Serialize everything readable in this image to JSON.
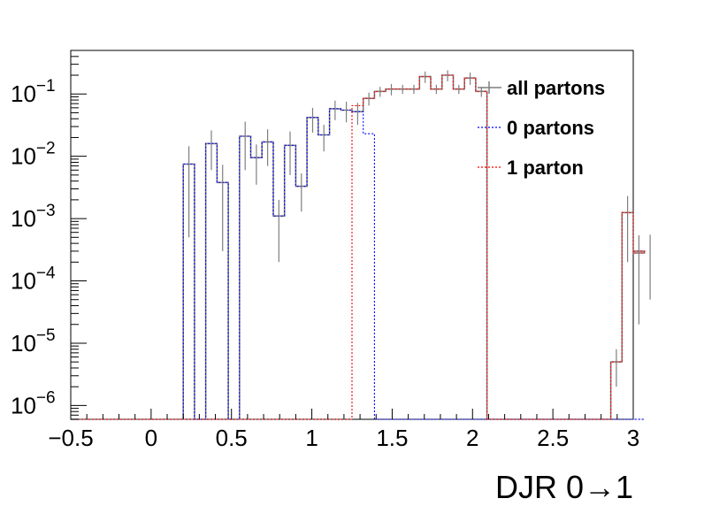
{
  "chart_data": {
    "type": "line",
    "style": "step-histogram",
    "xlabel": "DJR 0→1",
    "ylabel": "",
    "title": "",
    "xlim": [
      -0.5,
      3.0
    ],
    "ylim": [
      6e-07,
      0.5
    ],
    "yscale": "log",
    "grid": false,
    "legend_position": "top-right",
    "x_ticks": [
      "−0.5",
      "0",
      "0.5",
      "1",
      "1.5",
      "2",
      "2.5",
      "3"
    ],
    "x_tick_values": [
      -0.5,
      0,
      0.5,
      1,
      1.5,
      2,
      2.5,
      3
    ],
    "y_ticks": [
      {
        "value": 1e-06,
        "base": "10",
        "exp": "−6"
      },
      {
        "value": 1e-05,
        "base": "10",
        "exp": "−5"
      },
      {
        "value": 0.0001,
        "base": "10",
        "exp": "−4"
      },
      {
        "value": 0.001,
        "base": "10",
        "exp": "−3"
      },
      {
        "value": 0.01,
        "base": "10",
        "exp": "−2"
      },
      {
        "value": 0.1,
        "base": "10",
        "exp": "−1"
      }
    ],
    "bin_edges_start": -0.5,
    "bin_width": 0.07,
    "series": [
      {
        "name": "all partons",
        "color": "#7f7f7f",
        "dash": "solid",
        "values": [
          0,
          0,
          0,
          0,
          0,
          0,
          0,
          0,
          0,
          0,
          0.0075,
          0,
          0.016,
          0.0038,
          0,
          0.021,
          0.0095,
          0.017,
          0.0011,
          0.015,
          0.0033,
          0.042,
          0.022,
          0.058,
          0.055,
          0.052,
          0.085,
          0.11,
          0.12,
          0.12,
          0.12,
          0.19,
          0.12,
          0.2,
          0.12,
          0.18,
          0.11,
          0,
          0,
          0,
          0,
          0,
          0,
          0,
          0,
          0,
          0,
          0,
          5e-06,
          0.00125,
          0.00028,
          0.0003
        ],
        "errors": [
          0,
          0,
          0,
          0,
          0,
          0,
          0,
          0,
          0,
          0,
          0.007,
          0,
          0.01,
          0.0035,
          0,
          0.015,
          0.006,
          0.01,
          0.0009,
          0.01,
          0.002,
          0.018,
          0.01,
          0.02,
          0.02,
          0.02,
          0.02,
          0.02,
          0.025,
          0.02,
          0.02,
          0.04,
          0.02,
          0.04,
          0.02,
          0.04,
          0.02,
          0,
          0,
          0,
          0,
          0,
          0,
          0,
          0,
          0,
          0,
          0,
          3e-06,
          0.00105,
          0.00026,
          0.00025
        ]
      },
      {
        "name": "0 partons",
        "color": "#0000ff",
        "dash": "dotted",
        "values": [
          0,
          0,
          0,
          0,
          0,
          0,
          0,
          0,
          0,
          0,
          0.0075,
          0,
          0.016,
          0.0038,
          0,
          0.021,
          0.0095,
          0.017,
          0.0011,
          0.015,
          0.0033,
          0.042,
          0.022,
          0.058,
          0.055,
          0.052,
          0.023,
          0,
          0,
          0,
          0,
          0,
          0,
          0,
          0,
          0,
          0,
          0,
          0,
          0,
          0,
          0,
          0,
          0,
          0,
          0,
          0,
          0,
          0,
          0,
          0,
          0
        ]
      },
      {
        "name": "1 parton",
        "color": "#ff0000",
        "dash": "dotted",
        "values": [
          0,
          0,
          0,
          0,
          0,
          0,
          0,
          0,
          0,
          0,
          0,
          0,
          0,
          0,
          0,
          0,
          0,
          0,
          0,
          0,
          0,
          0,
          0,
          0,
          0,
          0.065,
          0.085,
          0.11,
          0.12,
          0.12,
          0.12,
          0.19,
          0.12,
          0.2,
          0.12,
          0.18,
          0.11,
          0,
          0,
          0,
          0,
          0,
          0,
          0,
          0,
          0,
          0,
          0,
          5e-06,
          0.00125,
          0.00028,
          0.0003
        ]
      }
    ]
  }
}
